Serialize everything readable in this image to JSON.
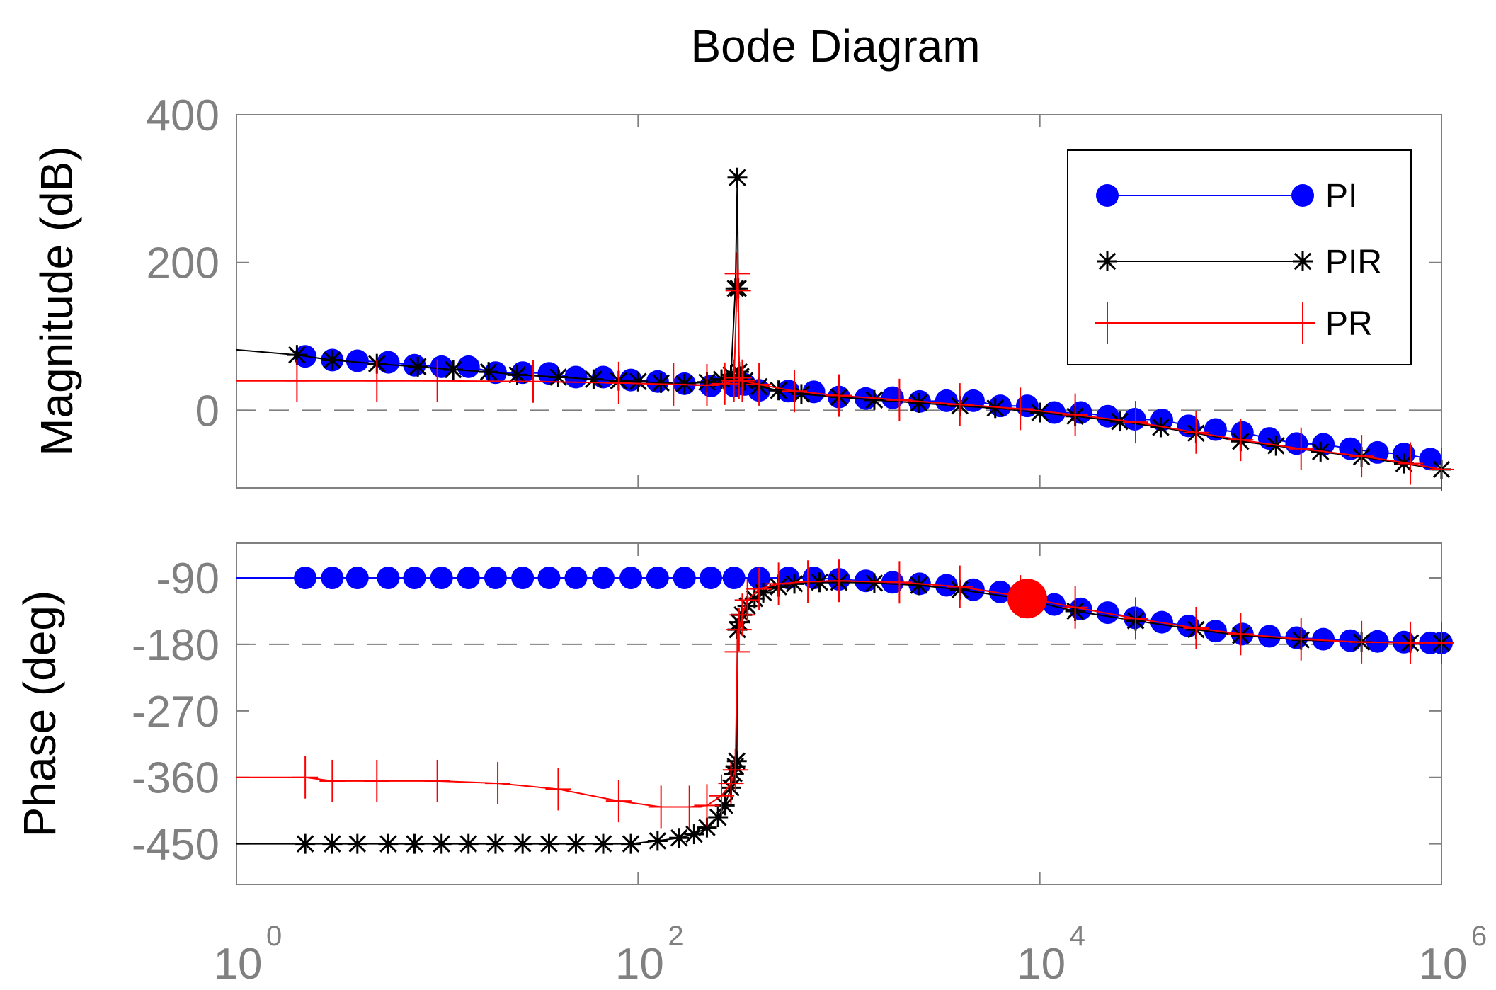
{
  "colors": {
    "pi": "#0000ff",
    "pir": "#000000",
    "pr": "#ff0000",
    "axis": "#808080",
    "highlight": "#ff0000"
  },
  "chart_data": {
    "type": "line",
    "title": "Bode Diagram",
    "xscale": "log",
    "xlim": [
      1,
      1000000
    ],
    "xticks": [
      {
        "base": "10",
        "exp": "0"
      },
      {
        "base": "10",
        "exp": "2"
      },
      {
        "base": "10",
        "exp": "4"
      },
      {
        "base": "10",
        "exp": "6"
      }
    ],
    "legend": {
      "position": "top-right",
      "entries": [
        "PI",
        "PIR",
        "PR"
      ]
    },
    "magnitude": {
      "ylabel": "Magnitude (dB)",
      "ylim": [
        -105,
        400
      ],
      "yticks": [
        "400",
        "200",
        "0"
      ],
      "series": [
        {
          "name": "PI",
          "marker": "circle",
          "x": [
            2.2,
            3,
            4,
            5.7,
            7.7,
            10.5,
            14.3,
            19.5,
            26.6,
            36,
            49,
            67,
            92,
            125,
            170,
            230,
            300,
            340,
            400,
            560,
            750,
            1000,
            1360,
            1850,
            2520,
            3430,
            4670,
            6360,
            8660,
            11800,
            16000,
            21800,
            29700,
            40500,
            55000,
            75000,
            102000,
            139000,
            190000,
            258000,
            352000,
            480000,
            650000,
            880000
          ],
          "y": [
            73,
            68,
            67,
            65,
            61,
            59,
            59,
            51,
            51,
            50,
            45,
            45,
            41,
            39,
            36,
            33,
            33,
            35,
            27,
            26,
            25,
            18,
            16,
            17,
            12,
            13,
            13,
            6,
            6,
            -3,
            -3,
            -8,
            -12,
            -13,
            -21,
            -26,
            -30,
            -38,
            -45,
            -46,
            -52,
            -57,
            -59,
            -66
          ]
        },
        {
          "name": "PIR",
          "marker": "star",
          "x": [
            1,
            2,
            3,
            5,
            8,
            12,
            18,
            25,
            40,
            60,
            80,
            100,
            130,
            170,
            220,
            260,
            290,
            305,
            312,
            315,
            318,
            325,
            340,
            400,
            500,
            650,
            1000,
            1500,
            2500,
            4000,
            6000,
            10000,
            15000,
            25000,
            40000,
            60000,
            100000,
            150000,
            250000,
            400000,
            650000,
            1000000
          ],
          "y": [
            82,
            75,
            68,
            63,
            59,
            55,
            52,
            48,
            45,
            42,
            40,
            39,
            37,
            36,
            38,
            42,
            48,
            165,
            315,
            165,
            52,
            46,
            40,
            32,
            27,
            22,
            18,
            14,
            10,
            6,
            3,
            -3,
            -8,
            -15,
            -23,
            -31,
            -42,
            -48,
            -56,
            -63,
            -72,
            -80
          ]
        },
        {
          "name": "PR",
          "marker": "plus",
          "x": [
            1,
            2,
            5,
            10,
            30,
            80,
            150,
            220,
            270,
            300,
            312,
            315,
            318,
            330,
            400,
            600,
            1000,
            2000,
            4000,
            8000,
            15000,
            30000,
            60000,
            100000,
            200000,
            400000,
            700000,
            1000000
          ],
          "y": [
            40,
            40,
            40,
            40,
            39,
            37,
            35,
            34,
            36,
            40,
            185,
            162,
            44,
            40,
            35,
            26,
            20,
            14,
            8,
            2,
            -6,
            -16,
            -30,
            -40,
            -52,
            -62,
            -72,
            -80
          ]
        }
      ]
    },
    "phase": {
      "ylabel": "Phase (deg)",
      "ylim": [
        -505,
        -43
      ],
      "yticks": [
        "-90",
        "-180",
        "-270",
        "-360",
        "-450"
      ],
      "series": [
        {
          "name": "PI",
          "marker": "circle",
          "x": [
            1,
            2.2,
            3,
            4,
            5.7,
            7.7,
            10.5,
            14.3,
            19.5,
            26.6,
            36,
            49,
            67,
            92,
            125,
            170,
            230,
            300,
            400,
            560,
            750,
            1000,
            1360,
            1850,
            2520,
            3430,
            4670,
            6360,
            8660,
            11800,
            16000,
            21800,
            29700,
            40500,
            55000,
            75000,
            102000,
            139000,
            190000,
            258000,
            352000,
            480000,
            650000,
            880000,
            1000000
          ],
          "y": [
            -90,
            -90,
            -90,
            -90,
            -90,
            -90,
            -90,
            -90,
            -90,
            -90,
            -90,
            -90,
            -90,
            -90,
            -90,
            -90,
            -90,
            -90,
            -90,
            -90,
            -90,
            -92,
            -94,
            -96,
            -98,
            -100,
            -106,
            -109,
            -118,
            -126,
            -132,
            -137,
            -144,
            -150,
            -155,
            -162,
            -166,
            -169,
            -171,
            -173,
            -175,
            -176,
            -177,
            -178,
            -178
          ]
        },
        {
          "name": "PIR",
          "marker": "star",
          "x": [
            1,
            2.2,
            3,
            4,
            5.7,
            7.7,
            10.5,
            14.3,
            19.5,
            26.6,
            36,
            49,
            67,
            92,
            125,
            160,
            190,
            220,
            250,
            270,
            290,
            300,
            305,
            310,
            312,
            318,
            330,
            350,
            380,
            420,
            500,
            600,
            800,
            1000,
            1500,
            2500,
            4000,
            8000,
            15000,
            30000,
            60000,
            100000,
            200000,
            400000,
            700000,
            1000000
          ],
          "y": [
            -450,
            -450,
            -450,
            -450,
            -450,
            -450,
            -450,
            -450,
            -450,
            -450,
            -450,
            -450,
            -450,
            -450,
            -446,
            -442,
            -437,
            -428,
            -414,
            -398,
            -374,
            -355,
            -345,
            -338,
            -160,
            -150,
            -140,
            -128,
            -118,
            -110,
            -102,
            -98,
            -96,
            -96,
            -97,
            -100,
            -106,
            -118,
            -135,
            -148,
            -160,
            -168,
            -174,
            -177,
            -178,
            -178
          ]
        },
        {
          "name": "PR",
          "marker": "plus",
          "x": [
            1,
            2.2,
            3,
            5,
            10,
            20,
            40,
            80,
            130,
            180,
            220,
            260,
            290,
            305,
            312,
            318,
            330,
            350,
            400,
            500,
            700,
            1000,
            2000,
            4000,
            8000,
            15000,
            30000,
            60000,
            100000,
            200000,
            400000,
            700000,
            1000000
          ],
          "y": [
            -360,
            -360,
            -365,
            -365,
            -365,
            -368,
            -376,
            -392,
            -400,
            -400,
            -398,
            -385,
            -368,
            -350,
            -190,
            -160,
            -140,
            -120,
            -105,
            -98,
            -95,
            -94,
            -96,
            -102,
            -115,
            -130,
            -145,
            -158,
            -166,
            -173,
            -177,
            -178,
            -178
          ]
        }
      ],
      "highlight_point": {
        "x": 8660,
        "y": -118
      }
    }
  }
}
